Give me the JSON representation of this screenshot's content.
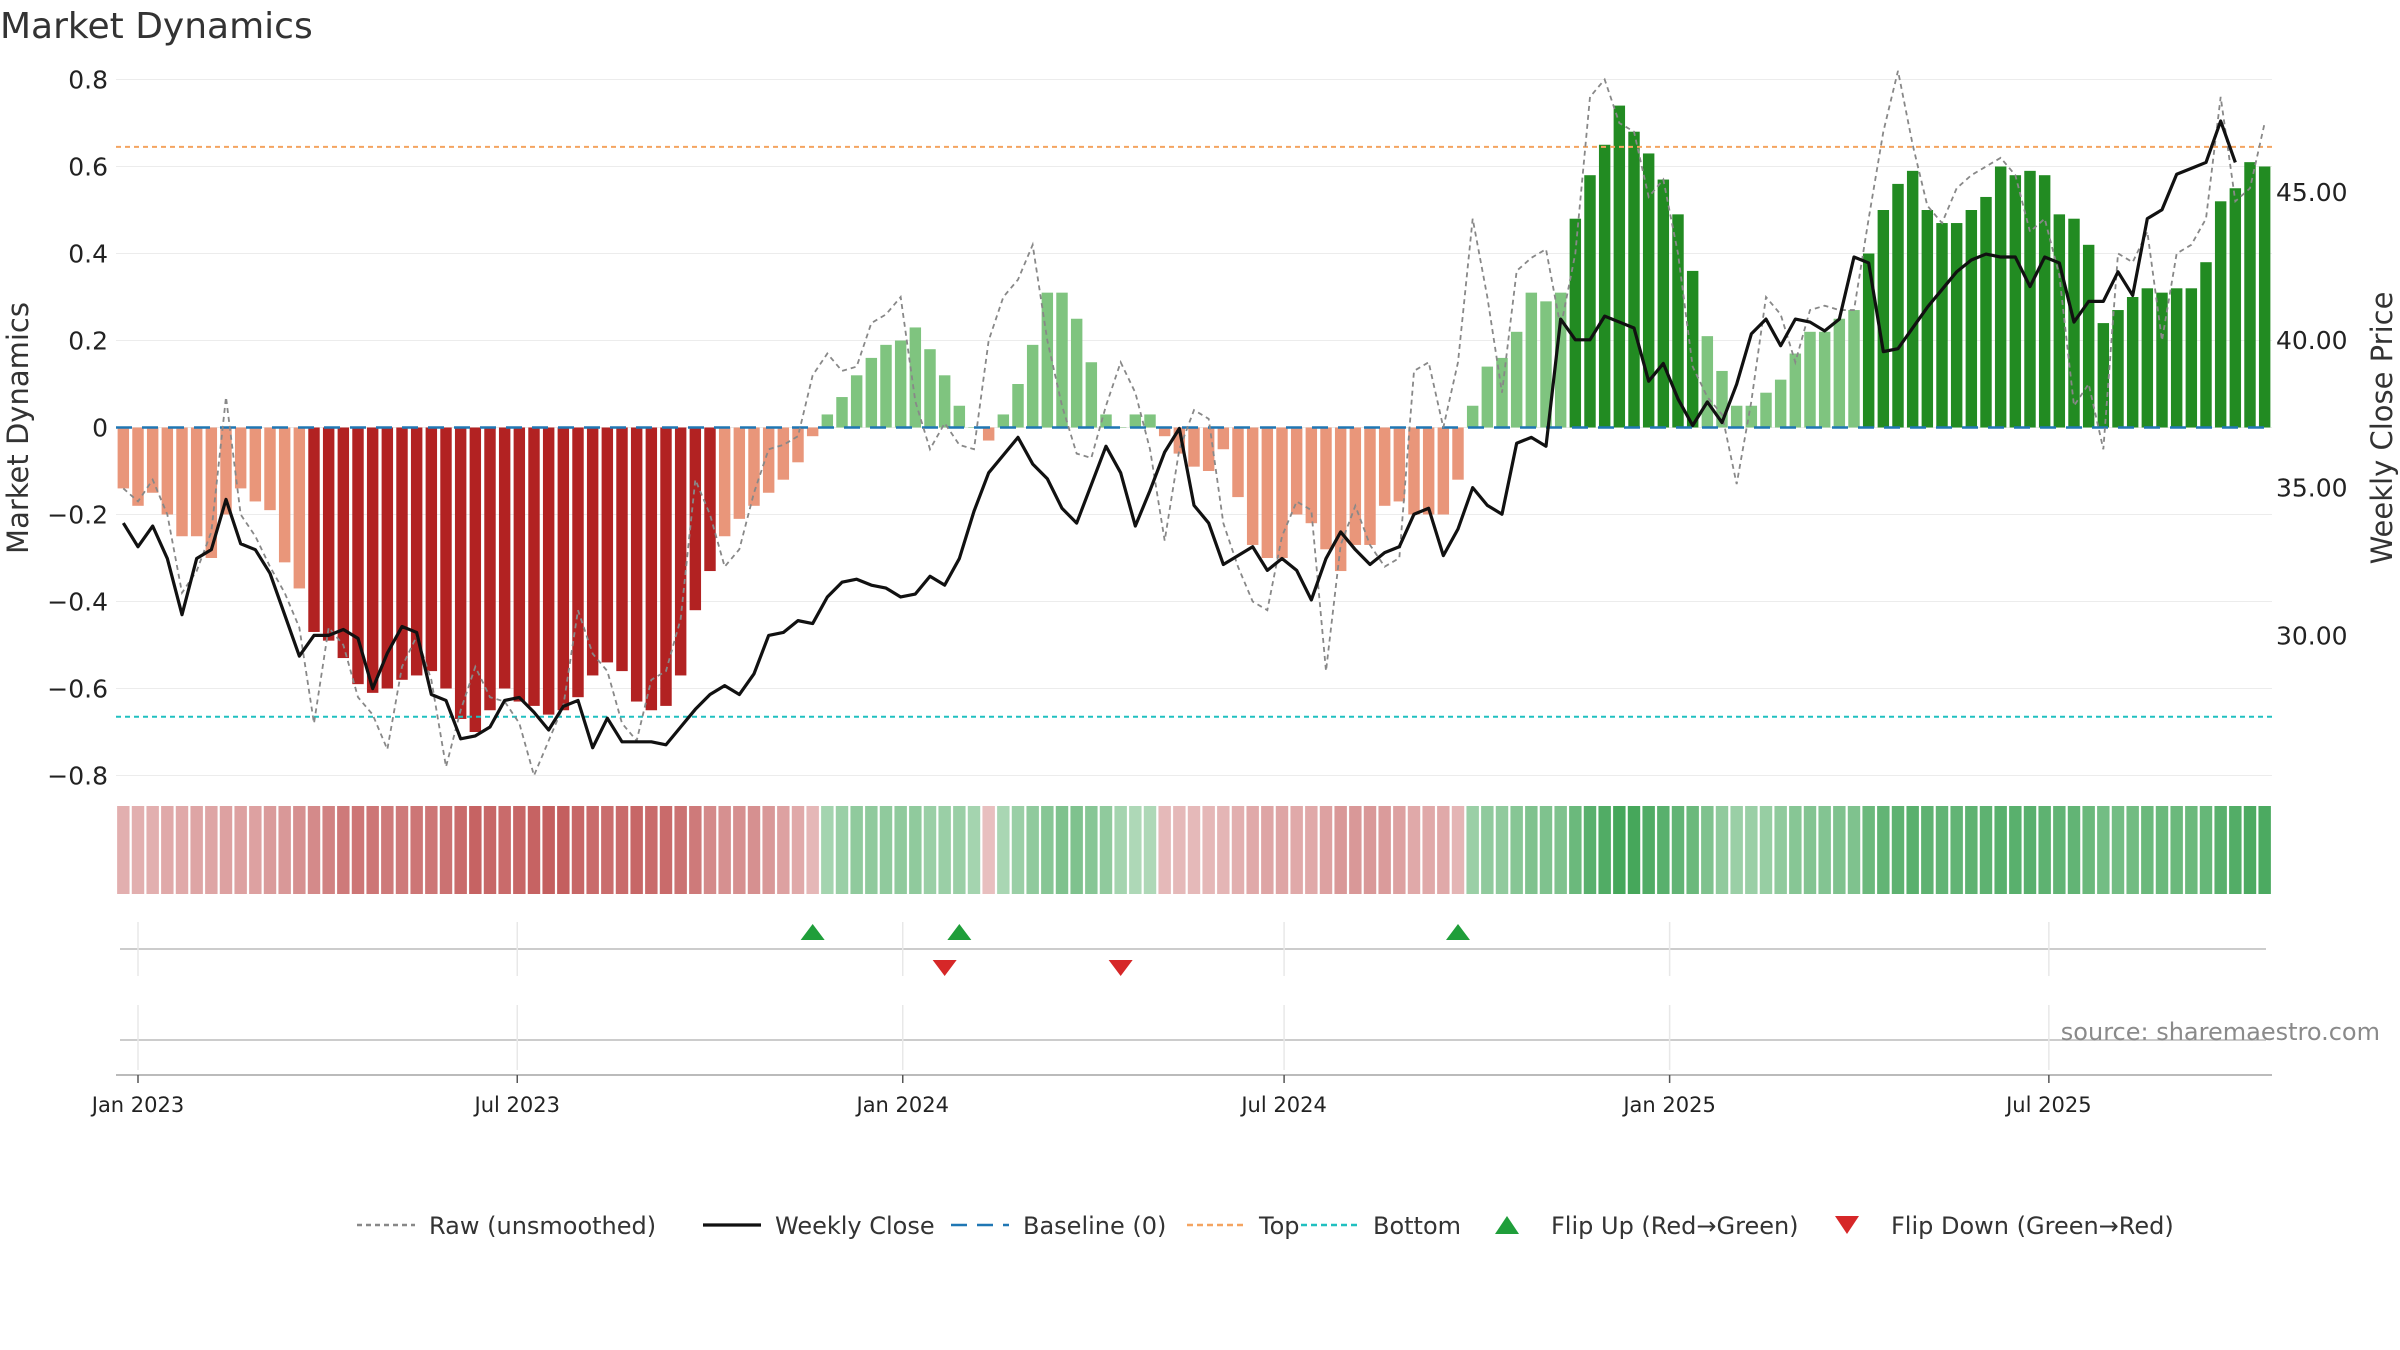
{
  "chart_data": {
    "type": "bar",
    "title": "Market Dynamics",
    "ylabel_left": "Market Dynamics",
    "ylabel_right": "Weekly Close Price",
    "source": "source: sharemaestro.com",
    "left_axis": {
      "range": [
        -0.85,
        0.82
      ],
      "ticks": [
        0.8,
        0.6,
        0.4,
        0.2,
        0,
        -0.2,
        -0.4,
        -0.6,
        -0.8
      ],
      "tick_labels": [
        "0.8",
        "0.6",
        "0.4",
        "0.2",
        "0",
        "−0.2",
        "−0.4",
        "−0.6",
        "−0.8"
      ]
    },
    "right_axis": {
      "ticks": [
        45.0,
        40.0,
        35.0,
        30.0
      ],
      "tick_labels": [
        "45.00",
        "40.00",
        "35.00",
        "30.00"
      ]
    },
    "x_ticks": [
      {
        "date": "2023-01-01",
        "label": "Jan 2023"
      },
      {
        "date": "2023-07-01",
        "label": "Jul 2023"
      },
      {
        "date": "2024-01-01",
        "label": "Jan 2024"
      },
      {
        "date": "2024-07-01",
        "label": "Jul 2024"
      },
      {
        "date": "2025-01-01",
        "label": "Jan 2025"
      },
      {
        "date": "2025-07-01",
        "label": "Jul 2025"
      }
    ],
    "first_week": "2022-12-25",
    "top_threshold": 0.645,
    "bottom_threshold": -0.665,
    "baseline": 0,
    "colors": {
      "strong_red": "#b22222",
      "light_red": "#e9967a",
      "strong_green": "#228b22",
      "light_green": "#7fc47f",
      "close": "#111111",
      "raw": "#888888",
      "baseline": "#1f77b4",
      "top": "#f4a460",
      "bottom": "#20c0c0",
      "flip_up": "#1f9e3a",
      "flip_down": "#d62728"
    },
    "dynamics": [
      -0.14,
      -0.18,
      -0.15,
      -0.2,
      -0.25,
      -0.25,
      -0.3,
      -0.2,
      -0.14,
      -0.17,
      -0.19,
      -0.31,
      -0.37,
      -0.47,
      -0.49,
      -0.53,
      -0.59,
      -0.61,
      -0.6,
      -0.58,
      -0.57,
      -0.56,
      -0.6,
      -0.67,
      -0.7,
      -0.65,
      -0.6,
      -0.63,
      -0.64,
      -0.66,
      -0.65,
      -0.62,
      -0.57,
      -0.54,
      -0.56,
      -0.63,
      -0.65,
      -0.64,
      -0.57,
      -0.42,
      -0.33,
      -0.25,
      -0.21,
      -0.18,
      -0.15,
      -0.12,
      -0.08,
      -0.02,
      0.03,
      0.07,
      0.12,
      0.16,
      0.19,
      0.2,
      0.23,
      0.18,
      0.12,
      0.05,
      0,
      -0.03,
      0.03,
      0.1,
      0.19,
      0.31,
      0.31,
      0.25,
      0.15,
      0.03,
      0,
      0.03,
      0.03,
      -0.02,
      -0.06,
      -0.09,
      -0.1,
      -0.05,
      -0.16,
      -0.27,
      -0.3,
      -0.3,
      -0.2,
      -0.22,
      -0.28,
      -0.33,
      -0.27,
      -0.27,
      -0.18,
      -0.17,
      -0.2,
      -0.2,
      -0.2,
      -0.12,
      0.05,
      0.14,
      0.16,
      0.22,
      0.31,
      0.29,
      0.31,
      0.48,
      0.58,
      0.65,
      0.74,
      0.68,
      0.63,
      0.57,
      0.49,
      0.36,
      0.21,
      0.13,
      0.05,
      0.05,
      0.08,
      0.11,
      0.17,
      0.22,
      0.22,
      0.25,
      0.27,
      0.4,
      0.5,
      0.56,
      0.59,
      0.5,
      0.47,
      0.47,
      0.5,
      0.53,
      0.6,
      0.58,
      0.59,
      0.58,
      0.49,
      0.48,
      0.42,
      0.24,
      0.27,
      0.3,
      0.32,
      0.31,
      0.32,
      0.32,
      0.38,
      0.52,
      0.55,
      0.61,
      0.6
    ],
    "strength": [
      0.25,
      0.25,
      0.25,
      0.3,
      0.3,
      0.32,
      0.32,
      0.35,
      0.35,
      0.35,
      0.38,
      0.4,
      0.45,
      0.5,
      0.55,
      0.6,
      0.62,
      0.62,
      0.6,
      0.6,
      0.62,
      0.62,
      0.65,
      0.7,
      0.75,
      0.72,
      0.7,
      0.72,
      0.75,
      0.78,
      0.78,
      0.72,
      0.7,
      0.68,
      0.7,
      0.72,
      0.7,
      0.7,
      0.65,
      0.6,
      0.5,
      0.45,
      0.45,
      0.45,
      0.4,
      0.35,
      0.3,
      0.2,
      0.25,
      0.3,
      0.35,
      0.35,
      0.35,
      0.35,
      0.35,
      0.3,
      0.3,
      0.3,
      0.25,
      0.12,
      0.22,
      0.3,
      0.35,
      0.4,
      0.45,
      0.45,
      0.4,
      0.35,
      0.25,
      0.2,
      0.2,
      0.18,
      0.18,
      0.18,
      0.2,
      0.22,
      0.25,
      0.3,
      0.32,
      0.32,
      0.3,
      0.3,
      0.35,
      0.4,
      0.4,
      0.4,
      0.38,
      0.35,
      0.3,
      0.3,
      0.3,
      0.22,
      0.3,
      0.35,
      0.35,
      0.4,
      0.45,
      0.45,
      0.45,
      0.55,
      0.65,
      0.7,
      0.75,
      0.75,
      0.7,
      0.65,
      0.6,
      0.55,
      0.45,
      0.35,
      0.3,
      0.3,
      0.32,
      0.35,
      0.4,
      0.42,
      0.42,
      0.45,
      0.45,
      0.55,
      0.6,
      0.62,
      0.65,
      0.62,
      0.6,
      0.6,
      0.62,
      0.62,
      0.65,
      0.65,
      0.65,
      0.62,
      0.6,
      0.6,
      0.55,
      0.5,
      0.5,
      0.52,
      0.55,
      0.55,
      0.55,
      0.55,
      0.58,
      0.65,
      0.68,
      0.72,
      0.72
    ],
    "close": [
      33.8,
      33.0,
      33.7,
      32.6,
      30.7,
      32.6,
      32.9,
      34.6,
      33.1,
      32.9,
      32.1,
      30.7,
      29.3,
      30.0,
      30.0,
      30.2,
      29.9,
      28.2,
      29.4,
      30.3,
      30.1,
      28.0,
      27.8,
      26.5,
      26.6,
      26.9,
      27.8,
      27.9,
      27.4,
      26.8,
      27.6,
      27.8,
      26.2,
      27.2,
      26.4,
      26.4,
      26.4,
      26.3,
      26.9,
      27.5,
      28.0,
      28.3,
      28.0,
      28.7,
      30.0,
      30.1,
      30.5,
      30.4,
      31.3,
      31.8,
      31.9,
      31.7,
      31.6,
      31.3,
      31.4,
      32.0,
      31.7,
      32.6,
      34.2,
      35.5,
      36.1,
      36.7,
      35.8,
      35.3,
      34.3,
      33.8,
      35.1,
      36.4,
      35.5,
      33.7,
      34.9,
      36.2,
      37.0,
      34.4,
      33.8,
      32.4,
      32.7,
      33.0,
      32.2,
      32.6,
      32.2,
      31.2,
      32.6,
      33.5,
      32.9,
      32.4,
      32.8,
      33.0,
      34.1,
      34.3,
      32.7,
      33.6,
      35.0,
      34.4,
      34.1,
      36.5,
      36.7,
      36.4,
      40.7,
      40.0,
      40.0,
      40.8,
      40.6,
      40.4,
      38.6,
      39.2,
      38.0,
      37.1,
      37.9,
      37.2,
      38.5,
      40.2,
      40.7,
      39.8,
      40.7,
      40.6,
      40.3,
      40.7,
      42.8,
      42.6,
      39.6,
      39.7,
      40.4,
      41.1,
      41.7,
      42.3,
      42.7,
      42.9,
      42.8,
      42.8,
      41.8,
      42.8,
      42.6,
      40.6,
      41.3,
      41.3,
      42.3,
      41.5,
      44.1,
      44.4,
      45.6,
      45.8,
      46.0,
      47.4,
      46.0
    ],
    "raw": [
      -0.14,
      -0.17,
      -0.12,
      -0.2,
      -0.38,
      -0.33,
      -0.24,
      0.07,
      -0.2,
      -0.25,
      -0.32,
      -0.38,
      -0.46,
      -0.68,
      -0.46,
      -0.5,
      -0.62,
      -0.66,
      -0.74,
      -0.55,
      -0.48,
      -0.58,
      -0.78,
      -0.65,
      -0.55,
      -0.62,
      -0.63,
      -0.68,
      -0.8,
      -0.72,
      -0.64,
      -0.42,
      -0.52,
      -0.56,
      -0.68,
      -0.72,
      -0.58,
      -0.56,
      -0.44,
      -0.12,
      -0.2,
      -0.32,
      -0.28,
      -0.15,
      -0.05,
      -0.04,
      -0.02,
      0.12,
      0.17,
      0.13,
      0.14,
      0.24,
      0.26,
      0.3,
      0.06,
      -0.05,
      0.01,
      -0.04,
      -0.05,
      0.2,
      0.3,
      0.34,
      0.42,
      0.2,
      0.05,
      -0.06,
      -0.07,
      0.05,
      0.15,
      0.08,
      -0.05,
      -0.26,
      -0.05,
      0.04,
      0.02,
      -0.22,
      -0.32,
      -0.4,
      -0.42,
      -0.25,
      -0.17,
      -0.19,
      -0.56,
      -0.27,
      -0.18,
      -0.27,
      -0.32,
      -0.3,
      0.13,
      0.15,
      0.0,
      0.15,
      0.48,
      0.3,
      0.08,
      0.36,
      0.39,
      0.41,
      0.23,
      0.4,
      0.76,
      0.8,
      0.7,
      0.68,
      0.53,
      0.57,
      0.4,
      0.14,
      0.07,
      0.03,
      -0.13,
      0.06,
      0.3,
      0.26,
      0.15,
      0.27,
      0.28,
      0.27,
      0.27,
      0.48,
      0.68,
      0.82,
      0.65,
      0.51,
      0.47,
      0.55,
      0.58,
      0.6,
      0.62,
      0.58,
      0.45,
      0.48,
      0.35,
      0.05,
      0.1,
      -0.05,
      0.4,
      0.38,
      0.45,
      0.2,
      0.4,
      0.42,
      0.48,
      0.76,
      0.52,
      0.55,
      0.7
    ],
    "flip_up": [
      {
        "date": "2023-11-19"
      },
      {
        "date": "2024-01-28"
      },
      {
        "date": "2024-09-22"
      }
    ],
    "flip_down": [
      {
        "date": "2024-01-21"
      },
      {
        "date": "2024-04-14"
      }
    ],
    "legend": [
      {
        "label": "Raw (unsmoothed)",
        "kind": "line-dotted",
        "color": "#888888"
      },
      {
        "label": "Weekly Close",
        "kind": "line-solid",
        "color": "#111111"
      },
      {
        "label": "Baseline (0)",
        "kind": "line-dashed",
        "color": "#1f77b4"
      },
      {
        "label": "Top",
        "kind": "line-dashed-fine",
        "color": "#f4a460"
      },
      {
        "label": "Bottom",
        "kind": "line-dashed-fine",
        "color": "#20c0c0"
      },
      {
        "label": "Flip Up (Red→Green)",
        "kind": "triangle-up",
        "color": "#1f9e3a"
      },
      {
        "label": "Flip Down (Green→Red)",
        "kind": "triangle-down",
        "color": "#d62728"
      }
    ]
  }
}
